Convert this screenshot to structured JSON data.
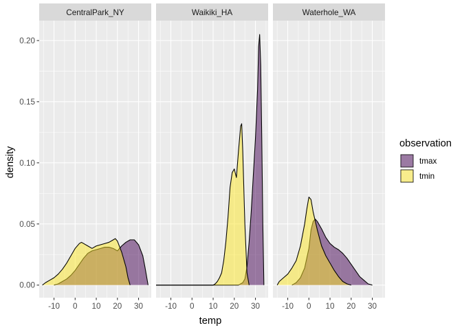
{
  "chart_data": {
    "type": "area",
    "subtype": "facetted density",
    "xlabel": "temp",
    "ylabel": "density",
    "xlim": [
      -17,
      36
    ],
    "ylim": [
      -0.0103,
      0.2163
    ],
    "x_ticks": [
      -10,
      0,
      10,
      20,
      30
    ],
    "y_ticks": [
      0.0,
      0.05,
      0.1,
      0.15,
      0.2
    ],
    "x_tick_labels": [
      "-10",
      "0",
      "10",
      "20",
      "30"
    ],
    "y_tick_labels": [
      "0.00",
      "0.05",
      "0.10",
      "0.15",
      "0.20"
    ],
    "grid": true,
    "legend": {
      "title": "observation",
      "position": "right",
      "entries": [
        {
          "name": "tmax",
          "color": "#440154",
          "alpha": 0.5
        },
        {
          "name": "tmin",
          "color": "#FDE725",
          "alpha": 0.5
        }
      ]
    },
    "facets": [
      {
        "label": "CentralPark_NY",
        "series": [
          {
            "name": "tmax",
            "x": [
              -10,
              -8,
              -6,
              -4,
              -2,
              0,
              2,
              4,
              6,
              8,
              10,
              12,
              14,
              16,
              18,
              20,
              22,
              24,
              26,
              28,
              30,
              32,
              33,
              34.5
            ],
            "y": [
              0,
              0.001,
              0.003,
              0.005,
              0.008,
              0.012,
              0.017,
              0.022,
              0.026,
              0.028,
              0.029,
              0.03,
              0.031,
              0.031,
              0.03,
              0.028,
              0.032,
              0.035,
              0.037,
              0.037,
              0.033,
              0.024,
              0.015,
              0
            ]
          },
          {
            "name": "tmin",
            "x": [
              -15.5,
              -14,
              -12,
              -10,
              -8,
              -6,
              -4,
              -2,
              0,
              2,
              3,
              4,
              6,
              8,
              10,
              12,
              14,
              16,
              18,
              19,
              20,
              22,
              24,
              25,
              26
            ],
            "y": [
              0,
              0.002,
              0.004,
              0.006,
              0.009,
              0.013,
              0.018,
              0.024,
              0.03,
              0.034,
              0.035,
              0.034,
              0.032,
              0.03,
              0.032,
              0.033,
              0.034,
              0.035,
              0.037,
              0.038,
              0.036,
              0.027,
              0.015,
              0.006,
              0
            ]
          }
        ]
      },
      {
        "label": "Waikiki_HA",
        "series": [
          {
            "name": "tmax",
            "x": [
              -17,
              10,
              14,
              18,
              20,
              22,
              23,
              24,
              25,
              26,
              27,
              28,
              29,
              30,
              30.5,
              31,
              31.5,
              32,
              32.5,
              33,
              33.5,
              34
            ],
            "y": [
              0,
              0,
              0,
              0,
              0,
              0,
              0.001,
              0.002,
              0.005,
              0.015,
              0.035,
              0.06,
              0.09,
              0.12,
              0.14,
              0.16,
              0.195,
              0.205,
              0.18,
              0.12,
              0.05,
              0
            ]
          },
          {
            "name": "tmin",
            "x": [
              -17,
              8,
              10,
              11,
              12,
              13,
              14,
              15,
              16,
              17,
              18,
              19,
              20,
              21,
              22,
              23,
              23.5,
              24,
              25,
              26,
              27
            ],
            "y": [
              0,
              0,
              0,
              0.001,
              0.003,
              0.006,
              0.01,
              0.02,
              0.035,
              0.055,
              0.08,
              0.092,
              0.095,
              0.088,
              0.11,
              0.13,
              0.132,
              0.11,
              0.05,
              0.01,
              0
            ]
          }
        ]
      },
      {
        "label": "Waterhole_WA",
        "series": [
          {
            "name": "tmax",
            "x": [
              -8,
              -6,
              -4,
              -2,
              0,
              1,
              2,
              3,
              4,
              6,
              8,
              10,
              12,
              14,
              16,
              18,
              20,
              22,
              24,
              26,
              28,
              30
            ],
            "y": [
              0,
              0.002,
              0.006,
              0.014,
              0.03,
              0.045,
              0.052,
              0.054,
              0.052,
              0.046,
              0.039,
              0.034,
              0.031,
              0.029,
              0.026,
              0.022,
              0.017,
              0.012,
              0.007,
              0.004,
              0.001,
              0
            ]
          },
          {
            "name": "tmin",
            "x": [
              -15,
              -14,
              -12,
              -10,
              -8,
              -6,
              -4,
              -2,
              -1,
              0,
              1,
              2,
              4,
              6,
              8,
              10,
              12,
              14,
              16,
              18,
              20
            ],
            "y": [
              0,
              0.003,
              0.006,
              0.009,
              0.014,
              0.02,
              0.032,
              0.05,
              0.062,
              0.072,
              0.07,
              0.06,
              0.045,
              0.032,
              0.024,
              0.018,
              0.012,
              0.007,
              0.003,
              0.001,
              0
            ]
          }
        ]
      }
    ]
  }
}
